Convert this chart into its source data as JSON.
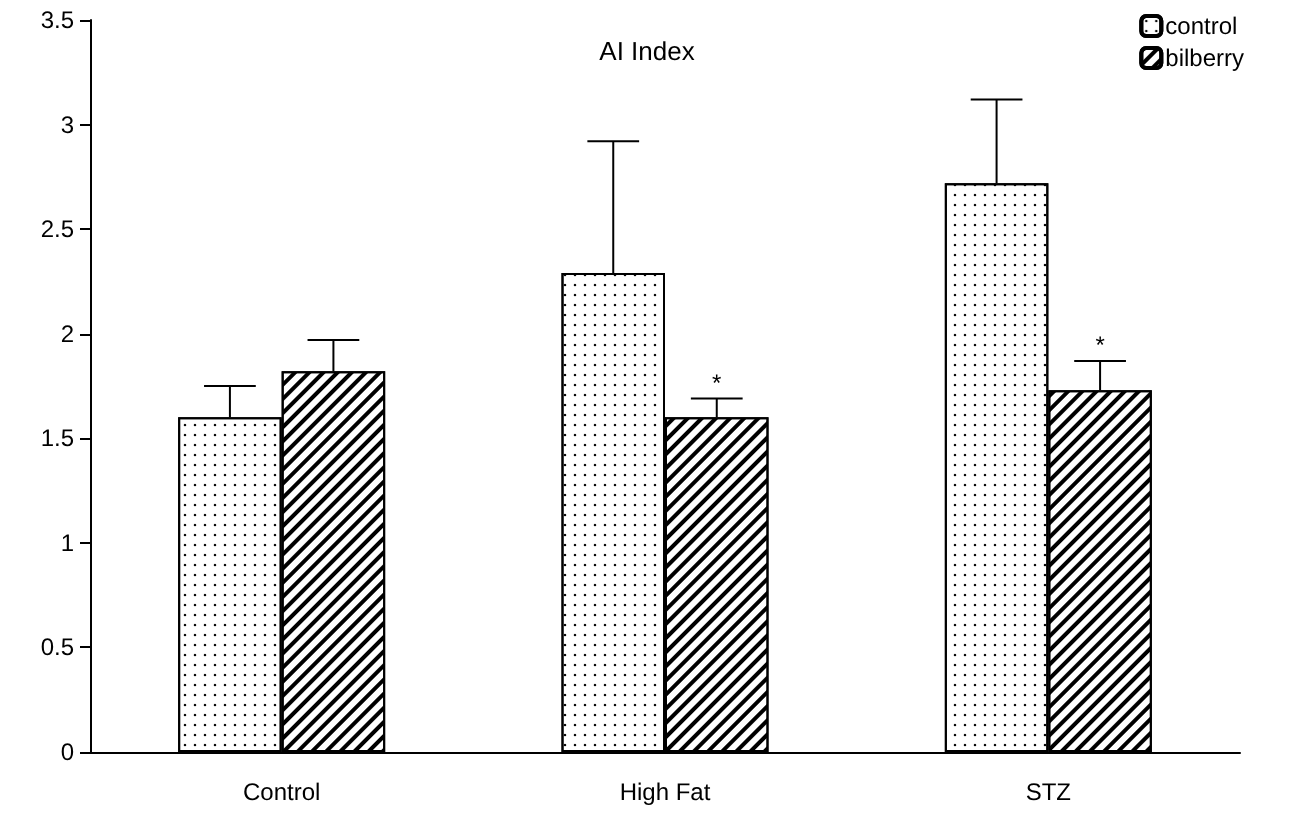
{
  "chart_data": {
    "type": "bar",
    "title": "AI Index",
    "categories": [
      "Control",
      "High Fat",
      "STZ"
    ],
    "series": [
      {
        "name": "control",
        "color": "#ffffff",
        "values": [
          1.6,
          2.29,
          2.72
        ],
        "errors": [
          [
            1.6,
            1.75
          ],
          [
            2.29,
            2.92
          ],
          [
            2.72,
            3.12
          ]
        ]
      },
      {
        "name": "bilberry",
        "color": "#ffffff",
        "values": [
          1.82,
          1.6,
          1.73
        ],
        "errors": [
          [
            1.82,
            1.97
          ],
          [
            1.6,
            1.69
          ],
          [
            1.73,
            1.87
          ]
        ]
      }
    ],
    "ylim": [
      0,
      3.5
    ],
    "yticks": [
      0,
      0.5,
      1,
      1.5,
      2,
      2.5,
      3,
      3.5
    ],
    "grid": false,
    "legend": "top right",
    "annotations": [
      {
        "text": "*",
        "x": "High Fat",
        "y": 1.69
      },
      {
        "text": "*",
        "x": "STZ",
        "y": 1.87
      }
    ]
  }
}
